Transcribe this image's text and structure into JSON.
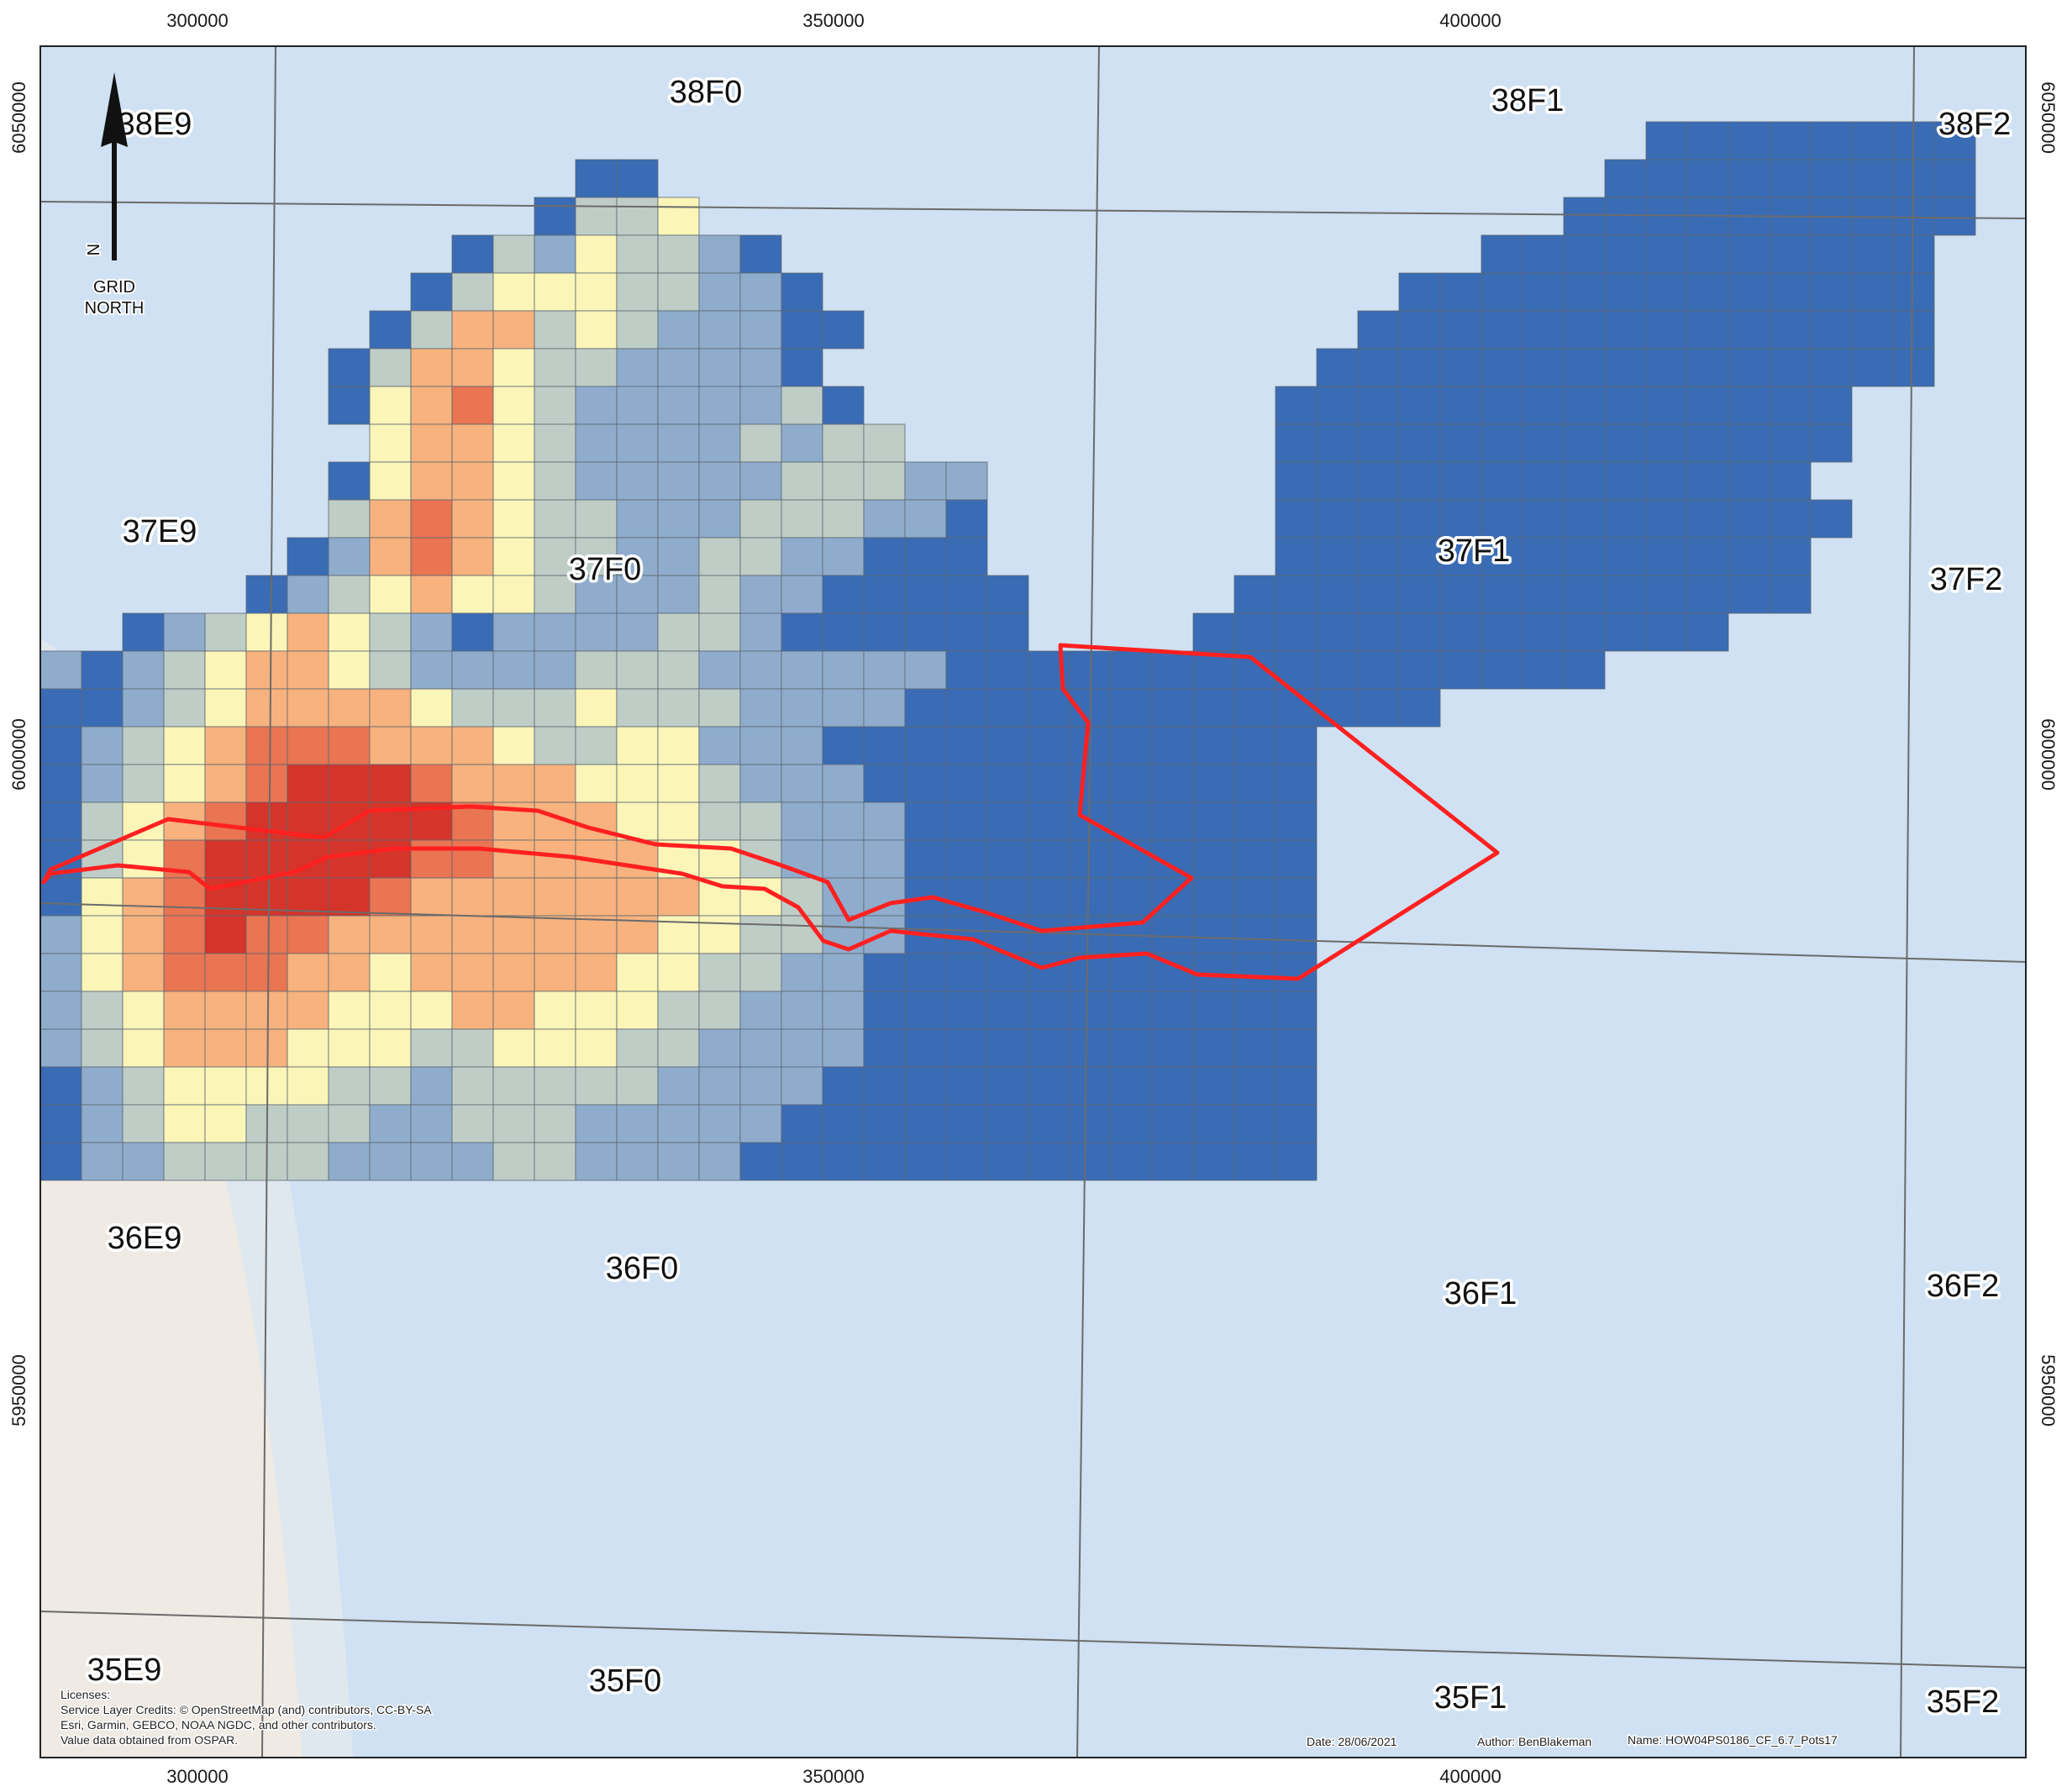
{
  "map": {
    "x_ticks": [
      "300000",
      "350000",
      "400000"
    ],
    "y_ticks": [
      "6050000",
      "6000000",
      "5950000"
    ],
    "north_arrow": {
      "letter": "N",
      "line1": "GRID",
      "line2": "NORTH"
    },
    "rectangles": [
      "38E9",
      "38F0",
      "38F1",
      "38F2",
      "37E9",
      "37F0",
      "37F1",
      "37F2",
      "36E9",
      "36F0",
      "36F1",
      "36F2",
      "35E9",
      "35F0",
      "35F1",
      "35F2"
    ],
    "credits": {
      "line1": "Licenses:",
      "line2": "Service Layer Credits: © OpenStreetMap (and) contributors, CC-BY-SA",
      "line3": "Esri, Garmin, GEBCO, NOAA NGDC, and other contributors.",
      "line4": "Value data obtained from OSPAR."
    },
    "footer": {
      "date": "Date: 28/06/2021",
      "author": "Author: BenBlakeman",
      "name": "Name: HOW04PS0186_CF_6.7_Pots17"
    },
    "colors": {
      "sea": "#cfe1f2",
      "land": "#efeae4",
      "bin1": "#3a6cb5",
      "bin2": "#8faccd",
      "bin3": "#bfcdc7",
      "bin4": "#fbf5b8",
      "bin5": "#f7b27e",
      "bin6": "#e97552",
      "bin7": "#d4342a",
      "boundary": "#ff2020"
    }
  }
}
